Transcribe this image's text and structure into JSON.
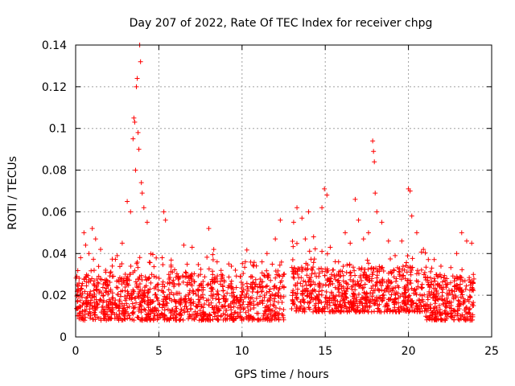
{
  "chart_data": {
    "type": "scatter",
    "title": "Day 207 of 2022, Rate Of TEC Index for receiver chpg",
    "xlabel": "GPS time / hours",
    "ylabel": "ROTI / TECUs",
    "xlim": [
      0,
      25
    ],
    "ylim": [
      0,
      0.14
    ],
    "xticks": [
      0,
      5,
      10,
      15,
      20,
      25
    ],
    "xtick_labels": [
      "0",
      "5",
      "10",
      "15",
      "20",
      "25"
    ],
    "yticks": [
      0,
      0.02,
      0.04,
      0.06,
      0.08,
      0.1,
      0.12,
      0.14
    ],
    "ytick_labels": [
      "0",
      "0.02",
      "0.04",
      "0.06",
      "0.08",
      "0.1",
      "0.12",
      "0.14"
    ],
    "grid": true,
    "marker": "+",
    "color": "#ff0000",
    "data_gap_hours": [
      12.55,
      12.95
    ],
    "data_extent_hours": [
      0.0,
      23.95
    ],
    "dense_band_roti": [
      0.008,
      0.03
    ],
    "sampled_points": [
      [
        0.1,
        0.025
      ],
      [
        0.3,
        0.038
      ],
      [
        0.5,
        0.05
      ],
      [
        0.6,
        0.044
      ],
      [
        0.8,
        0.04
      ],
      [
        1.0,
        0.052
      ],
      [
        1.2,
        0.047
      ],
      [
        1.5,
        0.042
      ],
      [
        1.8,
        0.032
      ],
      [
        2.2,
        0.034
      ],
      [
        2.5,
        0.039
      ],
      [
        2.8,
        0.045
      ],
      [
        3.1,
        0.065
      ],
      [
        3.3,
        0.06
      ],
      [
        3.45,
        0.095
      ],
      [
        3.5,
        0.105
      ],
      [
        3.55,
        0.103
      ],
      [
        3.6,
        0.08
      ],
      [
        3.65,
        0.12
      ],
      [
        3.7,
        0.124
      ],
      [
        3.75,
        0.098
      ],
      [
        3.8,
        0.09
      ],
      [
        3.85,
        0.14
      ],
      [
        3.9,
        0.132
      ],
      [
        3.95,
        0.074
      ],
      [
        4.0,
        0.069
      ],
      [
        4.1,
        0.062
      ],
      [
        4.3,
        0.055
      ],
      [
        5.2,
        0.038
      ],
      [
        5.3,
        0.06
      ],
      [
        5.4,
        0.056
      ],
      [
        5.6,
        0.03
      ],
      [
        6.2,
        0.025
      ],
      [
        6.5,
        0.044
      ],
      [
        7.0,
        0.043
      ],
      [
        7.5,
        0.03
      ],
      [
        8.0,
        0.052
      ],
      [
        8.3,
        0.042
      ],
      [
        8.5,
        0.036
      ],
      [
        9.2,
        0.035
      ],
      [
        9.6,
        0.032
      ],
      [
        10.2,
        0.036
      ],
      [
        10.7,
        0.034
      ],
      [
        11.2,
        0.036
      ],
      [
        11.5,
        0.04
      ],
      [
        12.0,
        0.047
      ],
      [
        12.3,
        0.056
      ],
      [
        12.5,
        0.03
      ],
      [
        13.1,
        0.055
      ],
      [
        13.3,
        0.062
      ],
      [
        13.6,
        0.057
      ],
      [
        13.8,
        0.047
      ],
      [
        14.0,
        0.06
      ],
      [
        14.3,
        0.048
      ],
      [
        14.8,
        0.062
      ],
      [
        14.95,
        0.071
      ],
      [
        15.1,
        0.068
      ],
      [
        15.3,
        0.043
      ],
      [
        15.8,
        0.036
      ],
      [
        16.2,
        0.05
      ],
      [
        16.5,
        0.045
      ],
      [
        16.8,
        0.066
      ],
      [
        17.0,
        0.056
      ],
      [
        17.3,
        0.047
      ],
      [
        17.6,
        0.05
      ],
      [
        17.85,
        0.094
      ],
      [
        17.9,
        0.089
      ],
      [
        17.95,
        0.084
      ],
      [
        18.0,
        0.069
      ],
      [
        18.1,
        0.06
      ],
      [
        18.4,
        0.055
      ],
      [
        18.8,
        0.046
      ],
      [
        19.2,
        0.039
      ],
      [
        19.6,
        0.046
      ],
      [
        20.0,
        0.071
      ],
      [
        20.1,
        0.07
      ],
      [
        20.2,
        0.058
      ],
      [
        20.5,
        0.05
      ],
      [
        20.9,
        0.042
      ],
      [
        21.4,
        0.033
      ],
      [
        21.9,
        0.03
      ],
      [
        22.3,
        0.028
      ],
      [
        22.9,
        0.04
      ],
      [
        23.2,
        0.05
      ],
      [
        23.5,
        0.046
      ],
      [
        23.8,
        0.045
      ],
      [
        23.9,
        0.03
      ]
    ]
  }
}
